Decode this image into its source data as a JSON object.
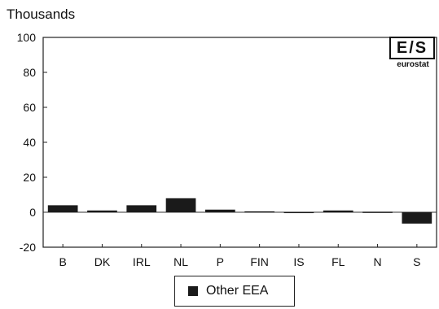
{
  "chart_data": {
    "type": "bar",
    "unit_label": "Thousands",
    "categories": [
      "B",
      "DK",
      "IRL",
      "NL",
      "P",
      "FIN",
      "IS",
      "FL",
      "N",
      "S"
    ],
    "series": [
      {
        "name": "Other EEA",
        "values": [
          4,
          1,
          4,
          8,
          1.5,
          0.5,
          0.2,
          1,
          0.3,
          -6.5
        ]
      }
    ],
    "ylim": [
      -20,
      100
    ],
    "yticks": [
      -20,
      0,
      20,
      40,
      60,
      80,
      100
    ],
    "grid": false,
    "legend_position": "bottom-center",
    "bar_color": "#1a1a1a"
  },
  "logo": {
    "mark": "E/S",
    "text": "eurostat"
  }
}
